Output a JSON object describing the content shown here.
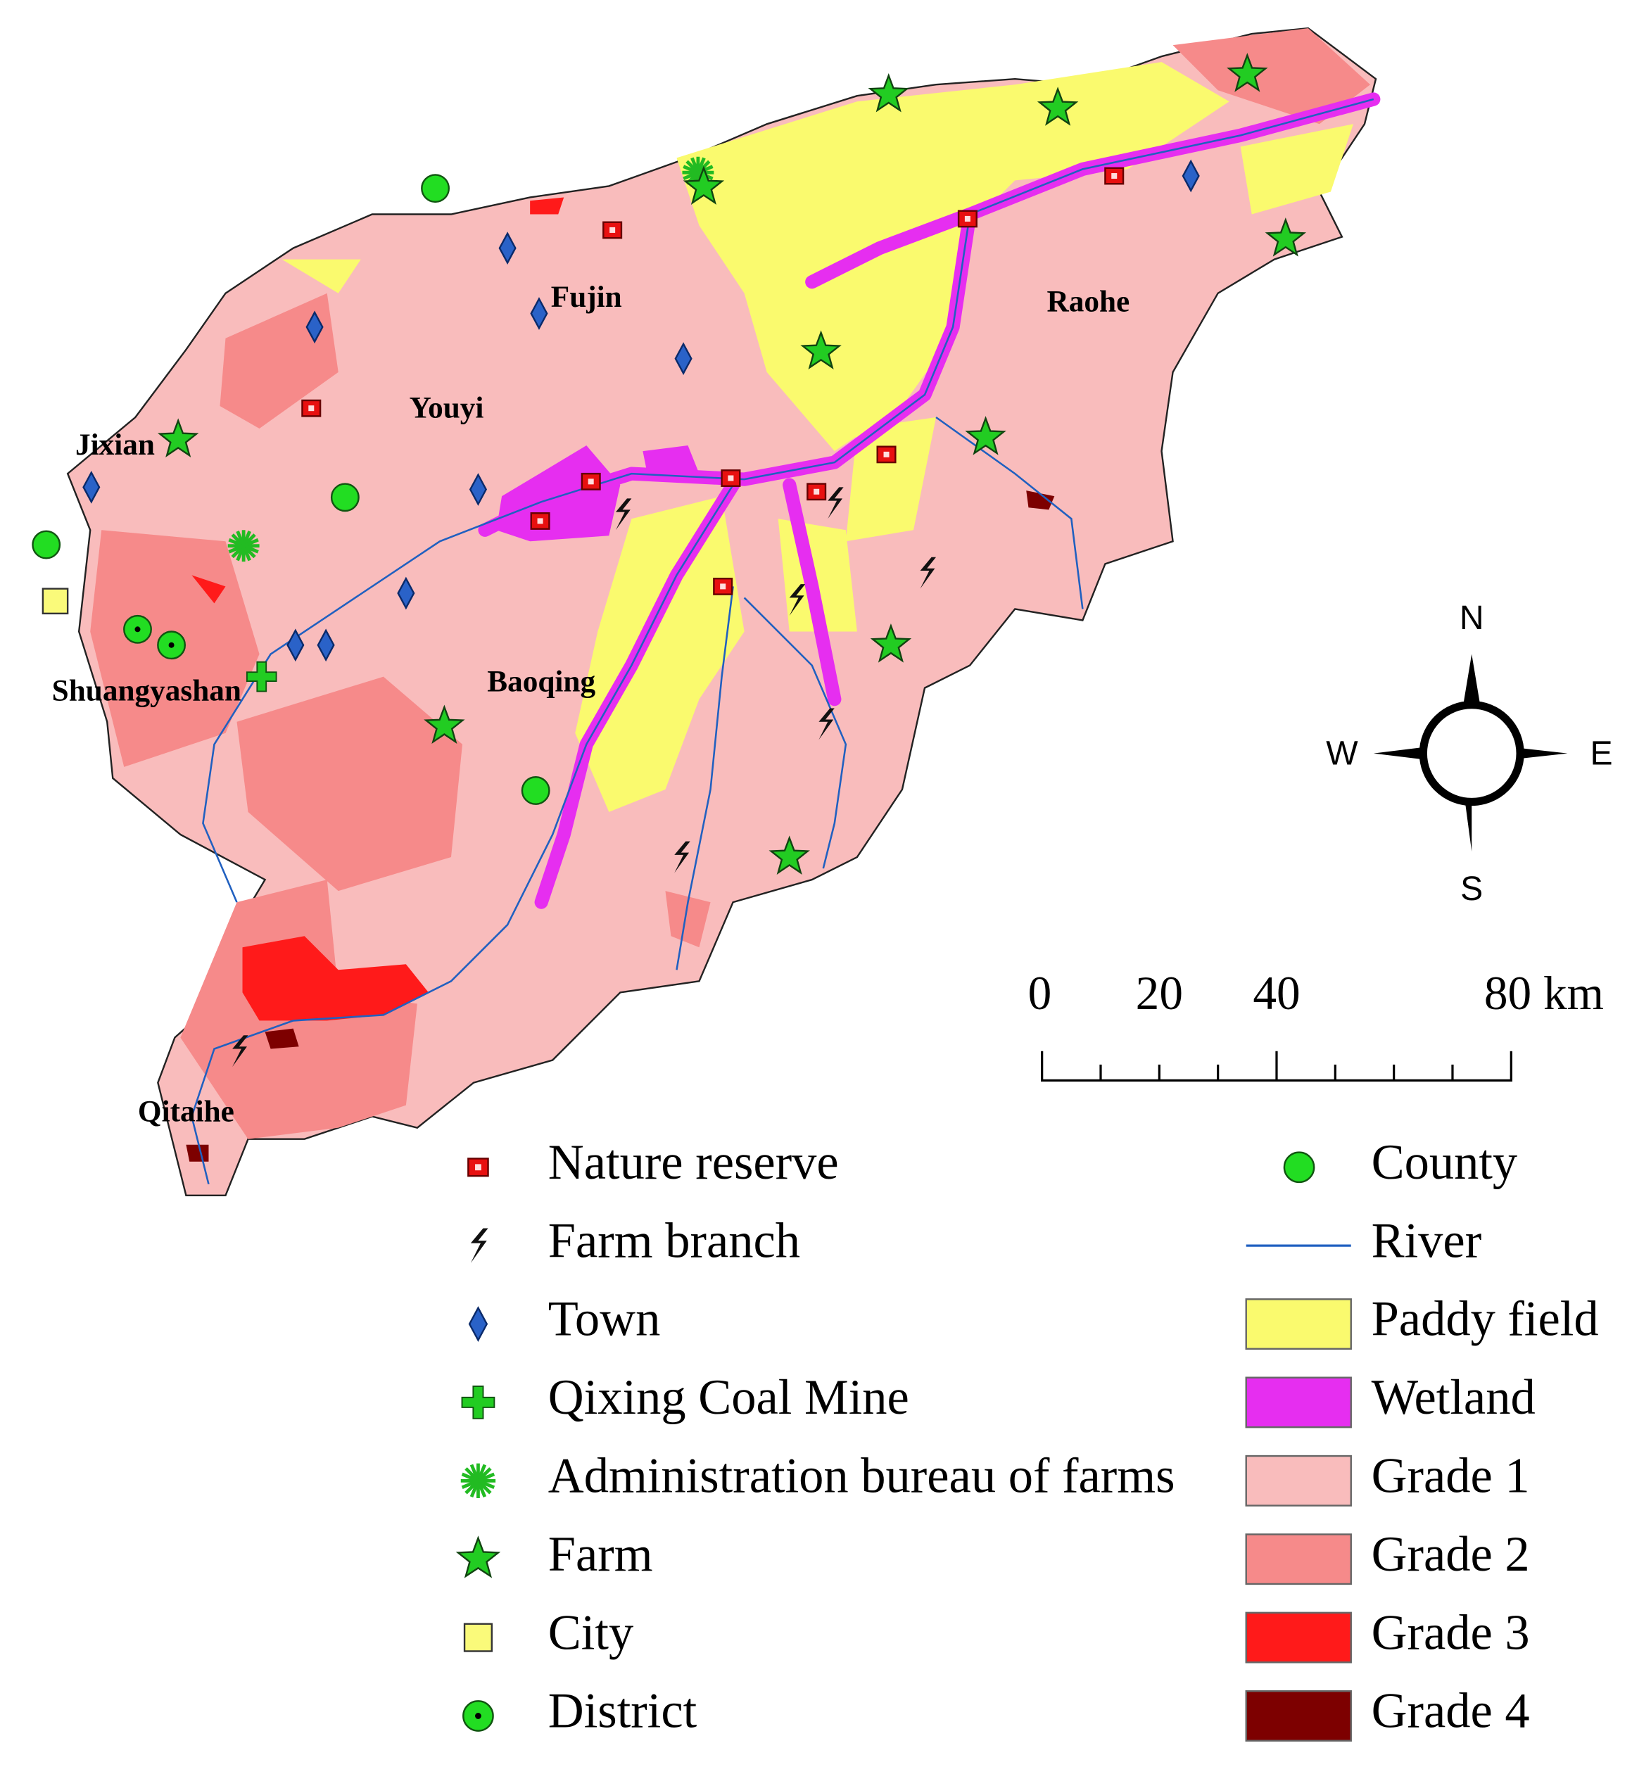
{
  "places": [
    "Fujin",
    "Raohe",
    "Youyi",
    "Jixian",
    "Baoqing",
    "Shuangyashan",
    "Qitaihe"
  ],
  "compass": {
    "north": "N",
    "south": "S",
    "west": "W",
    "east": "E"
  },
  "scale_bar": {
    "labels": [
      "0",
      "20",
      "40",
      "80 km"
    ]
  },
  "legend": {
    "left": [
      "Nature reserve",
      "Farm branch",
      "Town",
      "Qixing Coal Mine",
      "Administration bureau of farms",
      "Farm",
      "City",
      "District"
    ],
    "right": [
      "County",
      "River",
      "Paddy field",
      "Wetland",
      "Grade 1",
      "Grade 2",
      "Grade 3",
      "Grade 4"
    ]
  }
}
